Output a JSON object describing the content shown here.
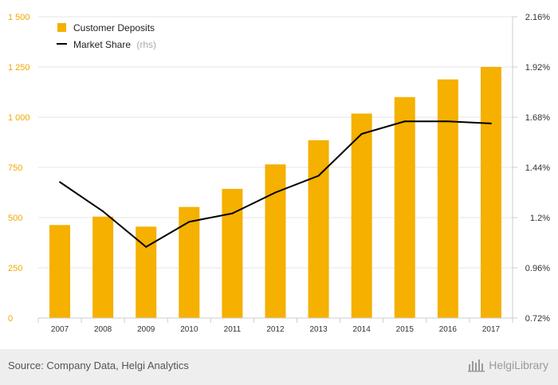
{
  "chart_data": {
    "type": "bar",
    "categories": [
      "2007",
      "2008",
      "2009",
      "2010",
      "2011",
      "2012",
      "2013",
      "2014",
      "2015",
      "2016",
      "2017"
    ],
    "series": [
      {
        "name": "Customer Deposits",
        "axis": "left",
        "type": "bar",
        "color": "#f5b000",
        "values": [
          463,
          505,
          455,
          553,
          643,
          765,
          885,
          1018,
          1100,
          1188,
          1250
        ]
      },
      {
        "name": "Market Share",
        "axis": "right",
        "type": "line",
        "color": "#000000",
        "values": [
          1.37,
          1.23,
          1.06,
          1.18,
          1.22,
          1.32,
          1.4,
          1.6,
          1.66,
          1.66,
          1.65
        ]
      }
    ],
    "legend": {
      "bar_label": "Customer Deposits",
      "line_label": "Market Share",
      "line_suffix": "(rhs)",
      "placement": "top-left"
    },
    "left_axis": {
      "ylim": [
        0,
        1500
      ],
      "ticks": [
        0,
        250,
        500,
        750,
        1000,
        1250,
        1500
      ],
      "tick_labels": [
        "0",
        "250",
        "500",
        "750",
        "1 000",
        "1 250",
        "1 500"
      ],
      "color": "#f0a800"
    },
    "right_axis": {
      "ylim": [
        0.72,
        2.16
      ],
      "ticks": [
        0.72,
        0.96,
        1.2,
        1.44,
        1.68,
        1.92,
        2.16
      ],
      "tick_labels": [
        "0.72%",
        "0.96%",
        "1.2%",
        "1.44%",
        "1.68%",
        "1.92%",
        "2.16%"
      ]
    },
    "grid": true
  },
  "footer": {
    "source": "Source: Company Data, Helgi Analytics",
    "brand": "HelgiLibrary"
  }
}
